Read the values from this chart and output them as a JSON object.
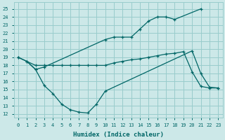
{
  "xlabel": "Humidex (Indice chaleur)",
  "background_color": "#cce8e8",
  "grid_color": "#99cccc",
  "line_color": "#006666",
  "xlim": [
    -0.5,
    23.5
  ],
  "ylim": [
    11.5,
    25.8
  ],
  "yticks": [
    12,
    13,
    14,
    15,
    16,
    17,
    18,
    19,
    20,
    21,
    22,
    23,
    24,
    25
  ],
  "xticks": [
    0,
    1,
    2,
    3,
    4,
    5,
    6,
    7,
    8,
    9,
    10,
    11,
    12,
    13,
    14,
    15,
    16,
    17,
    18,
    19,
    20,
    21,
    22,
    23
  ],
  "line1_x": [
    0,
    1,
    2,
    3,
    10,
    11,
    12,
    13,
    14,
    15,
    16,
    17,
    18,
    21
  ],
  "line1_y": [
    19.0,
    18.5,
    17.5,
    17.8,
    21.2,
    21.5,
    21.5,
    21.5,
    22.5,
    23.5,
    24.0,
    24.0,
    23.7,
    25.0
  ],
  "line2_x": [
    0,
    2,
    3,
    4,
    5,
    6,
    7,
    8,
    9,
    10,
    11,
    12,
    13,
    14,
    15,
    16,
    17,
    18,
    19,
    20,
    21,
    22,
    23
  ],
  "line2_y": [
    19.0,
    18.0,
    18.0,
    18.0,
    18.0,
    18.0,
    18.0,
    18.0,
    18.0,
    18.0,
    18.3,
    18.5,
    18.7,
    18.8,
    19.0,
    19.2,
    19.4,
    19.5,
    19.7,
    17.2,
    15.4,
    15.2,
    15.2
  ],
  "line3_x": [
    1,
    2,
    3,
    4,
    5,
    6,
    7,
    8,
    9,
    10,
    20,
    21,
    22,
    23
  ],
  "line3_y": [
    18.5,
    17.5,
    15.5,
    14.5,
    13.2,
    12.5,
    12.2,
    12.1,
    13.2,
    14.8,
    19.8,
    17.0,
    15.3,
    15.2
  ]
}
